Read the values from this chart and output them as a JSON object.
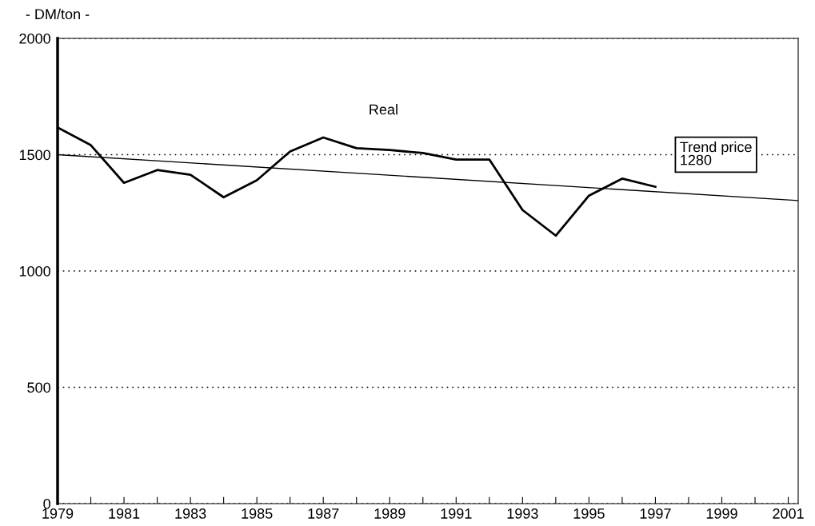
{
  "chart_data": {
    "type": "line",
    "ylabel": "- DM/ton -",
    "x": [
      1979,
      1980,
      1981,
      1982,
      1983,
      1984,
      1985,
      1986,
      1987,
      1988,
      1989,
      1990,
      1991,
      1992,
      1993,
      1994,
      1995,
      1996,
      1997
    ],
    "series": [
      {
        "name": "Real",
        "color": "#000000",
        "values": [
          1617,
          1541,
          1379,
          1434,
          1414,
          1317,
          1390,
          1514,
          1574,
          1528,
          1520,
          1507,
          1479,
          1479,
          1262,
          1152,
          1324,
          1397,
          1362
        ]
      },
      {
        "type": "line",
        "color": "#000000",
        "x": [
          1979,
          2001.3
        ],
        "values": [
          1500,
          1303
        ]
      }
    ],
    "annotations": [
      "Trend price\n1280"
    ],
    "xlim": [
      1979,
      2001.3
    ],
    "xticks": [
      1979,
      {
        "value": 1980,
        "label": null
      },
      1981,
      {
        "value": 1982,
        "label": null
      },
      1983,
      {
        "value": 1984,
        "label": null
      },
      1985,
      {
        "value": 1986,
        "label": null
      },
      1987,
      {
        "value": 1988,
        "label": null
      },
      1989,
      {
        "value": 1990,
        "label": null
      },
      1991,
      {
        "value": 1992,
        "label": null
      },
      1993,
      {
        "value": 1994,
        "label": null
      },
      1995,
      {
        "value": 1996,
        "label": null
      },
      1997,
      {
        "value": 1998,
        "label": null
      },
      1999,
      {
        "value": 2000,
        "label": null
      },
      2001
    ],
    "ylim": [
      0,
      2000
    ],
    "yticks": [
      0,
      500,
      1000,
      1500,
      2000
    ],
    "grid": "y",
    "marker": "none",
    "line_style": "solid",
    "legend": false
  }
}
